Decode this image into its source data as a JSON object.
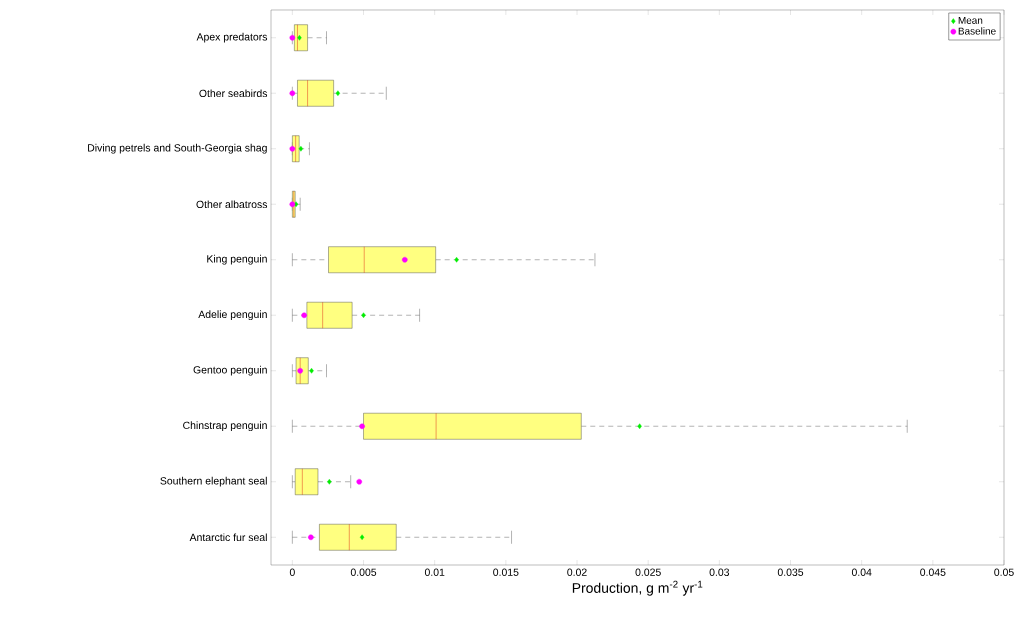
{
  "chart_data": {
    "type": "box",
    "orientation": "horizontal",
    "xlabel": "Production, g m$^{-2}$ yr$^{-1}$",
    "categories": [
      "Apex predators",
      "Other seabirds",
      "Diving petrels and South-Georgia shag",
      "Other albatross",
      "King penguin",
      "Adelie penguin",
      "Gentoo penguin",
      "Chinstrap penguin",
      "Southern elephant seal",
      "Antarctic fur seal"
    ],
    "color": "#ffff80",
    "boxes": [
      {
        "low": 0,
        "q1": 0.00014,
        "median": 0.00036,
        "q3": 0.00107,
        "high": 0.0024
      },
      {
        "low": 0,
        "q1": 0.00036,
        "median": 0.00107,
        "q3": 0.0029,
        "high": 0.0066
      },
      {
        "low": 0,
        "q1": 0,
        "median": 0.00023,
        "q3": 0.00048,
        "high": 0.0012
      },
      {
        "low": 0,
        "q1": 0,
        "median": 0.0001,
        "q3": 0.0002,
        "high": 0.00055
      },
      {
        "low": 0,
        "q1": 0.00254,
        "median": 0.00505,
        "q3": 0.01007,
        "high": 0.02126
      },
      {
        "low": 0,
        "q1": 0.00102,
        "median": 0.00213,
        "q3": 0.0042,
        "high": 0.00894
      },
      {
        "low": 0,
        "q1": 0.00026,
        "median": 0.00055,
        "q3": 0.00112,
        "high": 0.0024
      },
      {
        "low": 0,
        "q1": 0.005,
        "median": 0.0101,
        "q3": 0.0203,
        "high": 0.0432
      },
      {
        "low": 0,
        "q1": 0.0002,
        "median": 0.0007,
        "q3": 0.0018,
        "high": 0.0041
      },
      {
        "low": 0,
        "q1": 0.0019,
        "median": 0.004,
        "q3": 0.0073,
        "high": 0.0154
      }
    ],
    "series": [
      {
        "name": "Mean",
        "type": "scatter",
        "marker": "diamond",
        "color": "#00ee00",
        "values": [
          0.0005,
          0.0032,
          0.0006,
          0.00026,
          0.01154,
          0.005,
          0.00135,
          0.0244,
          0.0026,
          0.0049
        ]
      },
      {
        "name": "Baseline",
        "type": "scatter",
        "marker": "circle",
        "color": "#ff00ff",
        "values": [
          0,
          0,
          0,
          0,
          0.0079,
          0.00083,
          0.00055,
          0.0049,
          0.0047,
          0.0013
        ]
      }
    ],
    "xlim": [
      -0.0015,
      0.05
    ],
    "xticks": [
      0,
      0.005,
      0.01,
      0.015,
      0.02,
      0.025,
      0.03,
      0.035,
      0.04,
      0.045,
      0.05
    ],
    "legend": "top right"
  }
}
